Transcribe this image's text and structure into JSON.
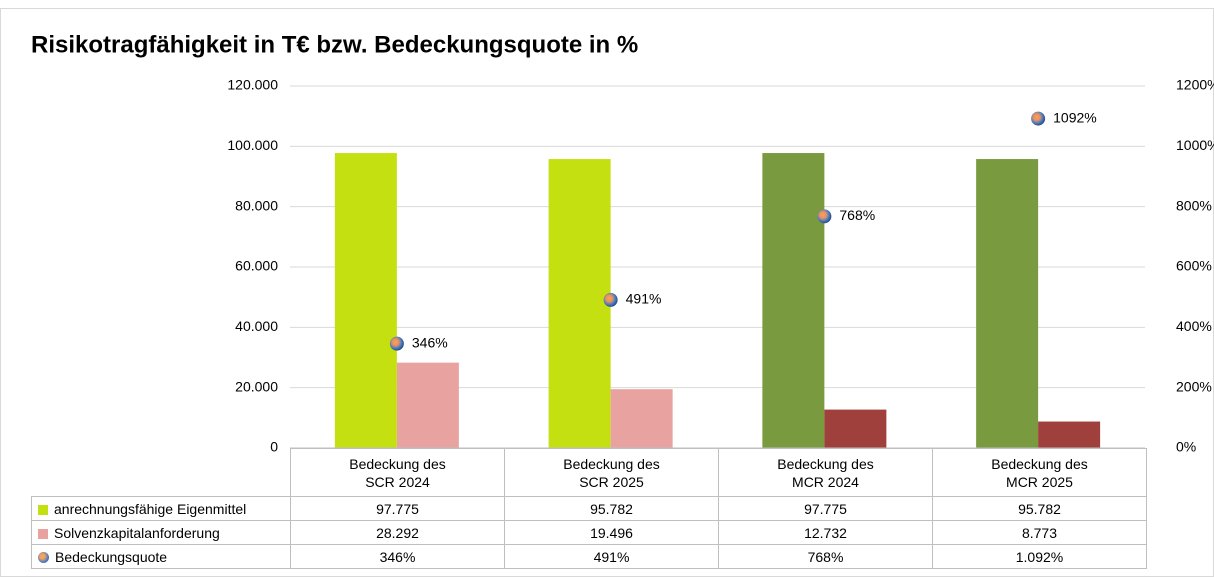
{
  "chart_data": {
    "type": "bar",
    "title": "Risikotragfähigkeit in T€ bzw. Bedeckungsquote in %",
    "categories": [
      "Bedeckung des SCR 2024",
      "Bedeckung des SCR 2025",
      "Bedeckung des MCR 2024",
      "Bedeckung des MCR 2025"
    ],
    "series": [
      {
        "name": "anrechnungsfähige Eigenmittel",
        "type": "bar",
        "color": "#c5e010",
        "colors": [
          "#c5e010",
          "#c5e010",
          "#7a9a3f",
          "#7a9a3f"
        ],
        "values": [
          97775,
          95782,
          97775,
          95782
        ],
        "value_labels": [
          "97.775",
          "95.782",
          "97.775",
          "95.782"
        ]
      },
      {
        "name": "Solvenzkapitalanforderung",
        "type": "bar",
        "color": "#e8a3a1",
        "colors": [
          "#e8a3a1",
          "#e8a3a1",
          "#a0403d",
          "#a0403d"
        ],
        "values": [
          28292,
          19496,
          12732,
          8773
        ],
        "value_labels": [
          "28.292",
          "19.496",
          "12.732",
          "8.773"
        ]
      },
      {
        "name": "Bedeckungsquote",
        "type": "scatter",
        "axis": "y2",
        "color": "#4f7fc0",
        "values": [
          346,
          491,
          768,
          1092
        ],
        "value_labels": [
          "346%",
          "491%",
          "768%",
          "1092%"
        ],
        "table_labels": [
          "346%",
          "491%",
          "768%",
          "1.092%"
        ]
      }
    ],
    "ylim": [
      0,
      120000
    ],
    "yticks": [
      0,
      {
        "value": 20000,
        "label": "20.000"
      },
      {
        "value": 40000,
        "label": "40.000"
      },
      {
        "value": 60000,
        "label": "60.000"
      },
      {
        "value": 80000,
        "label": "80.000"
      },
      {
        "value": 100000,
        "label": "100.000"
      },
      {
        "value": 120000,
        "label": "120.000"
      }
    ],
    "y2lim": [
      0,
      1200
    ],
    "y2ticks": [
      {
        "value": 0,
        "label": "0%"
      },
      {
        "value": 200,
        "label": "200%"
      },
      {
        "value": 400,
        "label": "400%"
      },
      {
        "value": 600,
        "label": "600%"
      },
      {
        "value": 800,
        "label": "800%"
      },
      {
        "value": 1000,
        "label": "1000%"
      },
      {
        "value": 1200,
        "label": "1200%"
      }
    ],
    "grid": true
  }
}
